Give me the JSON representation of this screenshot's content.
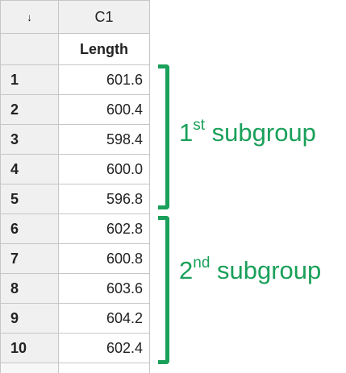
{
  "worksheet": {
    "corner_symbol": "↓",
    "column_id": "C1",
    "column_name": "Length",
    "rows": [
      {
        "row": "1",
        "value": "601.6"
      },
      {
        "row": "2",
        "value": "600.4"
      },
      {
        "row": "3",
        "value": "598.4"
      },
      {
        "row": "4",
        "value": "600.0"
      },
      {
        "row": "5",
        "value": "596.8"
      },
      {
        "row": "6",
        "value": "602.8"
      },
      {
        "row": "7",
        "value": "600.8"
      },
      {
        "row": "8",
        "value": "603.6"
      },
      {
        "row": "9",
        "value": "604.2"
      },
      {
        "row": "10",
        "value": "602.4"
      }
    ]
  },
  "annotations": {
    "color": "#1aa05a",
    "subgroup1": {
      "num": "1",
      "sup": "st",
      "text": " subgroup"
    },
    "subgroup2": {
      "num": "2",
      "sup": "nd",
      "text": " subgroup"
    }
  }
}
